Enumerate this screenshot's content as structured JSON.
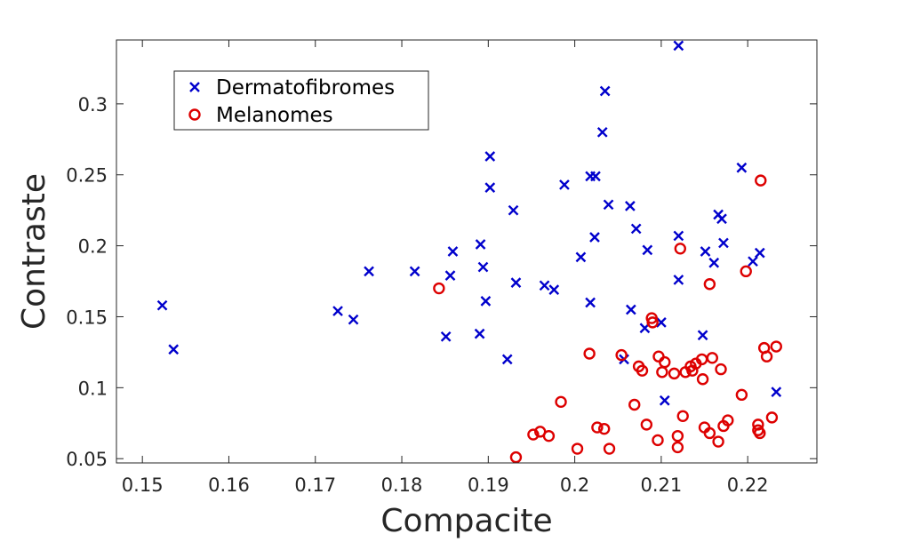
{
  "chart_data": {
    "type": "scatter",
    "xlabel": "Compacite",
    "ylabel": "Contraste",
    "xlim": [
      0.147,
      0.228
    ],
    "ylim": [
      0.047,
      0.345
    ],
    "xticks": [
      0.15,
      0.16,
      0.17,
      0.18,
      0.19,
      0.2,
      0.21,
      0.22
    ],
    "xtick_labels": [
      "0.15",
      "0.16",
      "0.17",
      "0.18",
      "0.19",
      "0.2",
      "0.21",
      "0.22"
    ],
    "yticks": [
      0.05,
      0.1,
      0.15,
      0.2,
      0.25,
      0.3
    ],
    "ytick_labels": [
      "0.05",
      "0.1",
      "0.15",
      "0.2",
      "0.25",
      "0.3"
    ],
    "grid": false,
    "legend_position": "top-left",
    "series": [
      {
        "name": "Dermatofibromes",
        "marker": "x",
        "color": "#0000cc",
        "points": [
          [
            0.1523,
            0.158
          ],
          [
            0.1536,
            0.127
          ],
          [
            0.1726,
            0.154
          ],
          [
            0.1744,
            0.148
          ],
          [
            0.1762,
            0.182
          ],
          [
            0.1815,
            0.182
          ],
          [
            0.1851,
            0.136
          ],
          [
            0.1859,
            0.196
          ],
          [
            0.1856,
            0.179
          ],
          [
            0.1891,
            0.201
          ],
          [
            0.1894,
            0.185
          ],
          [
            0.1897,
            0.161
          ],
          [
            0.189,
            0.138
          ],
          [
            0.1902,
            0.263
          ],
          [
            0.1902,
            0.241
          ],
          [
            0.1922,
            0.12
          ],
          [
            0.1929,
            0.225
          ],
          [
            0.1932,
            0.174
          ],
          [
            0.1965,
            0.172
          ],
          [
            0.1976,
            0.169
          ],
          [
            0.1988,
            0.243
          ],
          [
            0.2007,
            0.192
          ],
          [
            0.2018,
            0.249
          ],
          [
            0.2024,
            0.249
          ],
          [
            0.2018,
            0.16
          ],
          [
            0.2023,
            0.206
          ],
          [
            0.2032,
            0.28
          ],
          [
            0.2035,
            0.309
          ],
          [
            0.2039,
            0.229
          ],
          [
            0.2057,
            0.12
          ],
          [
            0.2064,
            0.228
          ],
          [
            0.2065,
            0.155
          ],
          [
            0.2071,
            0.212
          ],
          [
            0.2081,
            0.142
          ],
          [
            0.2084,
            0.197
          ],
          [
            0.21,
            0.146
          ],
          [
            0.2104,
            0.091
          ],
          [
            0.212,
            0.341
          ],
          [
            0.212,
            0.207
          ],
          [
            0.212,
            0.176
          ],
          [
            0.2148,
            0.137
          ],
          [
            0.2151,
            0.196
          ],
          [
            0.2161,
            0.188
          ],
          [
            0.2166,
            0.222
          ],
          [
            0.217,
            0.219
          ],
          [
            0.2172,
            0.202
          ],
          [
            0.2193,
            0.255
          ],
          [
            0.2206,
            0.189
          ],
          [
            0.2214,
            0.195
          ],
          [
            0.2233,
            0.097
          ]
        ]
      },
      {
        "name": "Melanomes",
        "marker": "o",
        "color": "#dd0000",
        "points": [
          [
            0.1843,
            0.17
          ],
          [
            0.1932,
            0.051
          ],
          [
            0.1952,
            0.067
          ],
          [
            0.196,
            0.069
          ],
          [
            0.197,
            0.066
          ],
          [
            0.1984,
            0.09
          ],
          [
            0.2003,
            0.057
          ],
          [
            0.2017,
            0.124
          ],
          [
            0.2026,
            0.072
          ],
          [
            0.2034,
            0.071
          ],
          [
            0.204,
            0.057
          ],
          [
            0.2054,
            0.123
          ],
          [
            0.2069,
            0.088
          ],
          [
            0.2074,
            0.115
          ],
          [
            0.2078,
            0.112
          ],
          [
            0.2083,
            0.074
          ],
          [
            0.2089,
            0.149
          ],
          [
            0.209,
            0.146
          ],
          [
            0.2096,
            0.063
          ],
          [
            0.2097,
            0.122
          ],
          [
            0.2101,
            0.111
          ],
          [
            0.2104,
            0.118
          ],
          [
            0.2115,
            0.11
          ],
          [
            0.2119,
            0.066
          ],
          [
            0.2119,
            0.058
          ],
          [
            0.2122,
            0.198
          ],
          [
            0.2125,
            0.08
          ],
          [
            0.2128,
            0.111
          ],
          [
            0.2134,
            0.115
          ],
          [
            0.2136,
            0.112
          ],
          [
            0.214,
            0.117
          ],
          [
            0.2147,
            0.12
          ],
          [
            0.2148,
            0.106
          ],
          [
            0.215,
            0.072
          ],
          [
            0.2156,
            0.068
          ],
          [
            0.2156,
            0.173
          ],
          [
            0.2159,
            0.121
          ],
          [
            0.2166,
            0.062
          ],
          [
            0.2169,
            0.113
          ],
          [
            0.2172,
            0.073
          ],
          [
            0.2177,
            0.077
          ],
          [
            0.2193,
            0.095
          ],
          [
            0.2198,
            0.182
          ],
          [
            0.2212,
            0.074
          ],
          [
            0.2212,
            0.07
          ],
          [
            0.2214,
            0.068
          ],
          [
            0.2215,
            0.246
          ],
          [
            0.2219,
            0.128
          ],
          [
            0.2222,
            0.122
          ],
          [
            0.2228,
            0.079
          ],
          [
            0.2233,
            0.129
          ]
        ]
      }
    ]
  }
}
